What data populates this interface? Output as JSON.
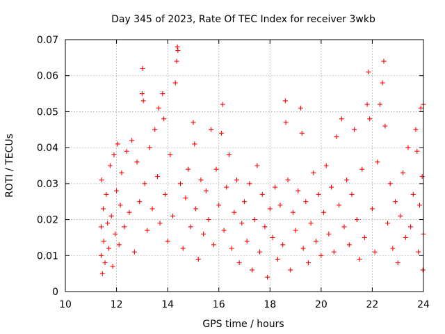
{
  "chart_data": {
    "type": "scatter",
    "title": "Day 345 of 2023, Rate Of TEC Index for receiver 3wkb",
    "xlabel": "GPS time / hours",
    "ylabel": "ROTI / TECUs",
    "xlim": [
      10,
      24
    ],
    "ylim": [
      0,
      0.07
    ],
    "xticks": [
      "10",
      "12",
      "14",
      "16",
      "18",
      "20",
      "22",
      "24"
    ],
    "yticks": [
      "0",
      "0.01",
      "0.02",
      "0.03",
      "0.04",
      "0.05",
      "0.06",
      "0.07"
    ],
    "grid": true,
    "marker": "+",
    "color": "#ff0000",
    "series": [
      {
        "points": [
          [
            11.4,
            0.018
          ],
          [
            11.4,
            0.01
          ],
          [
            11.42,
            0.031
          ],
          [
            11.45,
            0.005
          ],
          [
            11.48,
            0.023
          ],
          [
            11.5,
            0.014
          ],
          [
            11.55,
            0.008
          ],
          [
            11.6,
            0.027
          ],
          [
            11.65,
            0.019
          ],
          [
            11.7,
            0.012
          ],
          [
            11.75,
            0.035
          ],
          [
            11.8,
            0.021
          ],
          [
            11.85,
            0.007
          ],
          [
            11.9,
            0.038
          ],
          [
            11.95,
            0.016
          ],
          [
            12.0,
            0.028
          ],
          [
            12.05,
            0.041
          ],
          [
            12.1,
            0.013
          ],
          [
            12.15,
            0.024
          ],
          [
            12.2,
            0.033
          ],
          [
            12.3,
            0.018
          ],
          [
            12.4,
            0.039
          ],
          [
            12.5,
            0.022
          ],
          [
            12.6,
            0.042
          ],
          [
            12.7,
            0.011
          ],
          [
            12.8,
            0.036
          ],
          [
            12.9,
            0.025
          ],
          [
            13.0,
            0.055
          ],
          [
            13.02,
            0.062
          ],
          [
            13.05,
            0.053
          ],
          [
            13.1,
            0.03
          ],
          [
            13.2,
            0.017
          ],
          [
            13.3,
            0.04
          ],
          [
            13.4,
            0.023
          ],
          [
            13.5,
            0.045
          ],
          [
            13.6,
            0.032
          ],
          [
            13.65,
            0.051
          ],
          [
            13.7,
            0.019
          ],
          [
            13.8,
            0.055
          ],
          [
            13.85,
            0.048
          ],
          [
            13.9,
            0.027
          ],
          [
            14.0,
            0.014
          ],
          [
            14.1,
            0.038
          ],
          [
            14.2,
            0.021
          ],
          [
            14.3,
            0.058
          ],
          [
            14.35,
            0.064
          ],
          [
            14.38,
            0.068
          ],
          [
            14.4,
            0.067
          ],
          [
            14.5,
            0.03
          ],
          [
            14.6,
            0.012
          ],
          [
            14.7,
            0.026
          ],
          [
            14.8,
            0.034
          ],
          [
            14.9,
            0.018
          ],
          [
            15.0,
            0.047
          ],
          [
            15.05,
            0.041
          ],
          [
            15.1,
            0.023
          ],
          [
            15.2,
            0.009
          ],
          [
            15.3,
            0.031
          ],
          [
            15.4,
            0.016
          ],
          [
            15.5,
            0.028
          ],
          [
            15.6,
            0.02
          ],
          [
            15.7,
            0.045
          ],
          [
            15.8,
            0.013
          ],
          [
            15.9,
            0.034
          ],
          [
            16.0,
            0.024
          ],
          [
            16.1,
            0.044
          ],
          [
            16.15,
            0.052
          ],
          [
            16.2,
            0.017
          ],
          [
            16.3,
            0.029
          ],
          [
            16.4,
            0.038
          ],
          [
            16.5,
            0.012
          ],
          [
            16.6,
            0.022
          ],
          [
            16.7,
            0.031
          ],
          [
            16.8,
            0.008
          ],
          [
            16.9,
            0.019
          ],
          [
            17.0,
            0.025
          ],
          [
            17.1,
            0.014
          ],
          [
            17.2,
            0.03
          ],
          [
            17.3,
            0.006
          ],
          [
            17.4,
            0.02
          ],
          [
            17.5,
            0.035
          ],
          [
            17.6,
            0.011
          ],
          [
            17.7,
            0.027
          ],
          [
            17.8,
            0.018
          ],
          [
            17.9,
            0.004
          ],
          [
            18.0,
            0.023
          ],
          [
            18.1,
            0.015
          ],
          [
            18.2,
            0.029
          ],
          [
            18.3,
            0.009
          ],
          [
            18.4,
            0.024
          ],
          [
            18.5,
            0.013
          ],
          [
            18.6,
            0.053
          ],
          [
            18.62,
            0.047
          ],
          [
            18.7,
            0.031
          ],
          [
            18.8,
            0.006
          ],
          [
            18.9,
            0.022
          ],
          [
            19.0,
            0.017
          ],
          [
            19.1,
            0.028
          ],
          [
            19.2,
            0.051
          ],
          [
            19.25,
            0.044
          ],
          [
            19.3,
            0.012
          ],
          [
            19.4,
            0.025
          ],
          [
            19.5,
            0.008
          ],
          [
            19.6,
            0.019
          ],
          [
            19.7,
            0.033
          ],
          [
            19.8,
            0.014
          ],
          [
            19.9,
            0.027
          ],
          [
            20.0,
            0.01
          ],
          [
            20.1,
            0.022
          ],
          [
            20.2,
            0.035
          ],
          [
            20.3,
            0.016
          ],
          [
            20.4,
            0.029
          ],
          [
            20.5,
            0.011
          ],
          [
            20.6,
            0.043
          ],
          [
            20.7,
            0.024
          ],
          [
            20.8,
            0.048
          ],
          [
            20.9,
            0.018
          ],
          [
            21.0,
            0.031
          ],
          [
            21.1,
            0.013
          ],
          [
            21.2,
            0.027
          ],
          [
            21.3,
            0.045
          ],
          [
            21.4,
            0.02
          ],
          [
            21.5,
            0.009
          ],
          [
            21.6,
            0.034
          ],
          [
            21.7,
            0.015
          ],
          [
            21.8,
            0.052
          ],
          [
            21.85,
            0.061
          ],
          [
            21.9,
            0.048
          ],
          [
            22.0,
            0.023
          ],
          [
            22.1,
            0.011
          ],
          [
            22.2,
            0.036
          ],
          [
            22.3,
            0.052
          ],
          [
            22.4,
            0.058
          ],
          [
            22.45,
            0.064
          ],
          [
            22.5,
            0.046
          ],
          [
            22.6,
            0.019
          ],
          [
            22.7,
            0.03
          ],
          [
            22.8,
            0.012
          ],
          [
            22.9,
            0.025
          ],
          [
            23.0,
            0.008
          ],
          [
            23.1,
            0.021
          ],
          [
            23.2,
            0.033
          ],
          [
            23.3,
            0.015
          ],
          [
            23.4,
            0.04
          ],
          [
            23.5,
            0.018
          ],
          [
            23.6,
            0.027
          ],
          [
            23.7,
            0.045
          ],
          [
            23.75,
            0.039
          ],
          [
            23.8,
            0.011
          ],
          [
            23.85,
            0.024
          ],
          [
            23.9,
            0.051
          ],
          [
            23.95,
            0.032
          ],
          [
            24.0,
            0.052
          ],
          [
            24.0,
            0.016
          ],
          [
            23.98,
            0.006
          ]
        ]
      }
    ]
  }
}
